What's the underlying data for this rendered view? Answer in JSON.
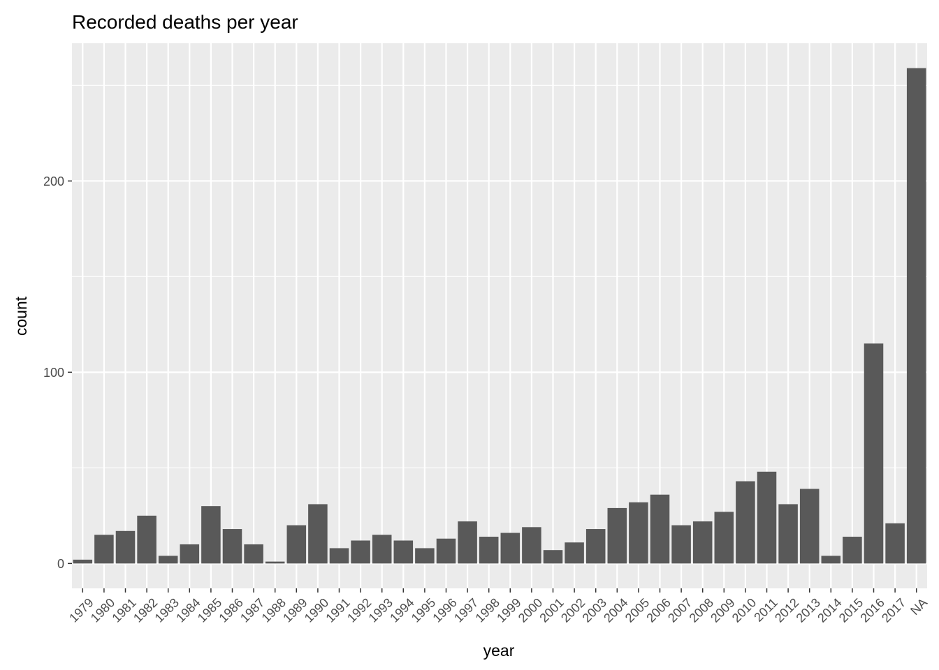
{
  "chart_data": {
    "type": "bar",
    "title": "Recorded deaths per year",
    "xlabel": "year",
    "ylabel": "count",
    "categories": [
      "1979",
      "1980",
      "1981",
      "1982",
      "1983",
      "1984",
      "1985",
      "1986",
      "1987",
      "1988",
      "1989",
      "1990",
      "1991",
      "1992",
      "1993",
      "1994",
      "1995",
      "1996",
      "1997",
      "1998",
      "1999",
      "2000",
      "2001",
      "2002",
      "2003",
      "2004",
      "2005",
      "2006",
      "2007",
      "2008",
      "2009",
      "2010",
      "2011",
      "2012",
      "2013",
      "2014",
      "2015",
      "2016",
      "2017",
      "NA"
    ],
    "values": [
      2,
      15,
      17,
      25,
      4,
      10,
      30,
      18,
      10,
      1,
      20,
      31,
      8,
      12,
      15,
      12,
      8,
      13,
      22,
      14,
      16,
      19,
      7,
      11,
      18,
      29,
      32,
      36,
      20,
      22,
      27,
      43,
      48,
      31,
      39,
      4,
      14,
      115,
      21,
      259
    ],
    "ylim": [
      -13,
      272
    ],
    "y_ticks": [
      0,
      100,
      200
    ],
    "y_minor_ticks": [
      50,
      150,
      250
    ],
    "grid": true,
    "x_tick_rotation": 45,
    "colors": {
      "panel_background": "#ebebeb",
      "grid": "#ffffff",
      "bar": "#595959",
      "tick_text": "#4d4d4d",
      "tick_mark": "#333333"
    }
  }
}
